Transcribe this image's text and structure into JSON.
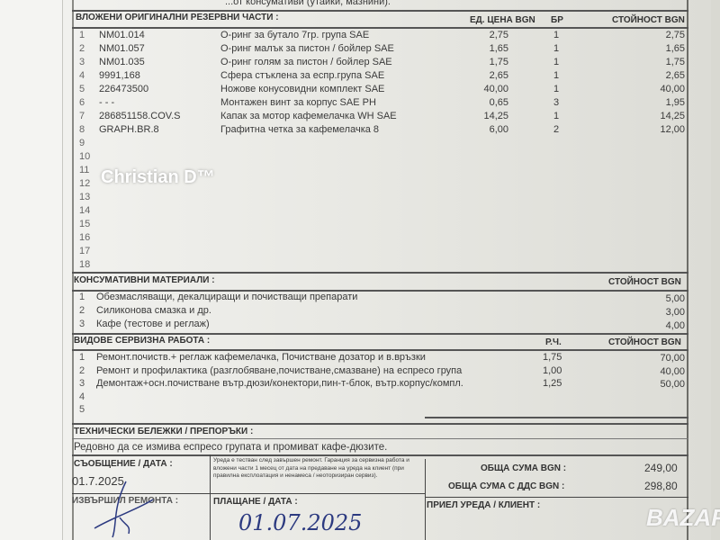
{
  "top_cut_text": "...от консумативи (утайки, мазнини).",
  "parts": {
    "title": "ВЛОЖЕНИ ОРИГИНАЛНИ РЕЗЕРВНИ ЧАСТИ :",
    "col_unit_price": "ЕД. ЦЕНА BGN",
    "col_qty": "БР",
    "col_value": "СТОЙНОСТ BGN",
    "rows": [
      {
        "n": "1",
        "code": "NM01.014",
        "desc": "О-ринг за бутало 7гр. група SAE",
        "price": "2,75",
        "qty": "1",
        "value": "2,75"
      },
      {
        "n": "2",
        "code": "NM01.057",
        "desc": "О-ринг малък за пистон / бойлер SAE",
        "price": "1,65",
        "qty": "1",
        "value": "1,65"
      },
      {
        "n": "3",
        "code": "NM01.035",
        "desc": "О-ринг голям за пистон / бойлер SAE",
        "price": "1,75",
        "qty": "1",
        "value": "1,75"
      },
      {
        "n": "4",
        "code": "9991,168",
        "desc": "Сфера стъклена за еспр.група SAE",
        "price": "2,65",
        "qty": "1",
        "value": "2,65"
      },
      {
        "n": "5",
        "code": "226473500",
        "desc": "Ножове конусовидни комплект SAE",
        "price": "40,00",
        "qty": "1",
        "value": "40,00"
      },
      {
        "n": "6",
        "code": "- - -",
        "desc": "Монтажен винт за  корпус SAE PH",
        "price": "0,65",
        "qty": "3",
        "value": "1,95"
      },
      {
        "n": "7",
        "code": "286851158.COV.S",
        "desc": "Капак за мотор кафемелачка WH SAE",
        "price": "14,25",
        "qty": "1",
        "value": "14,25"
      },
      {
        "n": "8",
        "code": "GRAPH.BR.8",
        "desc": "Графитна четка за кафемелачка 8",
        "price": "6,00",
        "qty": "2",
        "value": "12,00"
      },
      {
        "n": "9"
      },
      {
        "n": "10"
      },
      {
        "n": "11"
      },
      {
        "n": "12"
      },
      {
        "n": "13"
      },
      {
        "n": "14"
      },
      {
        "n": "15"
      },
      {
        "n": "16"
      },
      {
        "n": "17"
      },
      {
        "n": "18"
      }
    ]
  },
  "consumables": {
    "title": "КОНСУМАТИВНИ МАТЕРИАЛИ :",
    "col_value": "СТОЙНОСТ BGN",
    "rows": [
      {
        "n": "1",
        "desc": "Обезмасляващи, декалциращи и почистващи препарати",
        "value": "5,00"
      },
      {
        "n": "2",
        "desc": "Силиконова смазка и др.",
        "value": "3,00"
      },
      {
        "n": "3",
        "desc": "Кафе (тестове и реглаж)",
        "value": "4,00"
      }
    ]
  },
  "services": {
    "title": "ВИДОВЕ СЕРВИЗНА РАБОТА :",
    "col_hours": "Р.Ч.",
    "col_value": "СТОЙНОСТ BGN",
    "rows": [
      {
        "n": "1",
        "desc": "Ремонт.почиств.+ реглаж кафемелачка, Почистване дозатор и в.връзки",
        "hours": "1,75",
        "value": "70,00"
      },
      {
        "n": "2",
        "desc": "Ремонт и профилактика (разглобяване,почистване,смазване) на еспресо група",
        "hours": "1,00",
        "value": "40,00"
      },
      {
        "n": "3",
        "desc": "Демонтаж+осн.почистване вътр.дюзи/конектори,пин-т-блок, вътр.корпус/компл.",
        "hours": "1,25",
        "value": "50,00"
      },
      {
        "n": "4"
      },
      {
        "n": "5"
      }
    ]
  },
  "notes": {
    "title": "ТЕХНИЧЕСКИ БЕЛЕЖКИ / ПРЕПОРЪКИ :",
    "text": "Редовно да се измива еспресо групата и промиват кафе-дюзите."
  },
  "footer": {
    "message_label": "СЪОБЩЕНИЕ / ДАТА :",
    "message_date": "01.7.2025",
    "warranty": "Уреда е тестван след завършен ремонт. Гаранция за сервизна работа и вложени части 1 месец от дата на предаване на уреда на клиент (при правилна експлоатация и ненамеса / неоторизиран сервиз).",
    "repaired_by_label": "ИЗВЪРШИЛ РЕМОНТА :",
    "payment_label": "ПЛАЩАНЕ / ДАТА :",
    "payment_date_handwritten": "01.07.2025",
    "total_label": "ОБЩА СУМА BGN :",
    "total": "249,00",
    "total_vat_label": "ОБЩА СУМА С ДДС BGN :",
    "total_vat": "298,80",
    "received_label": "ПРИЕЛ УРЕДА / КЛИЕНТ :"
  },
  "watermarks": {
    "top": "Christian D™",
    "bottom": "BAZAR"
  }
}
